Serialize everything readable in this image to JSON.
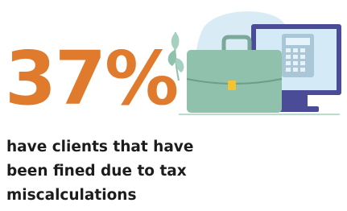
{
  "stat": "37%",
  "description": {
    "lines": [
      "have clients that have",
      "been fined due to tax",
      "miscalculations"
    ]
  }
}
